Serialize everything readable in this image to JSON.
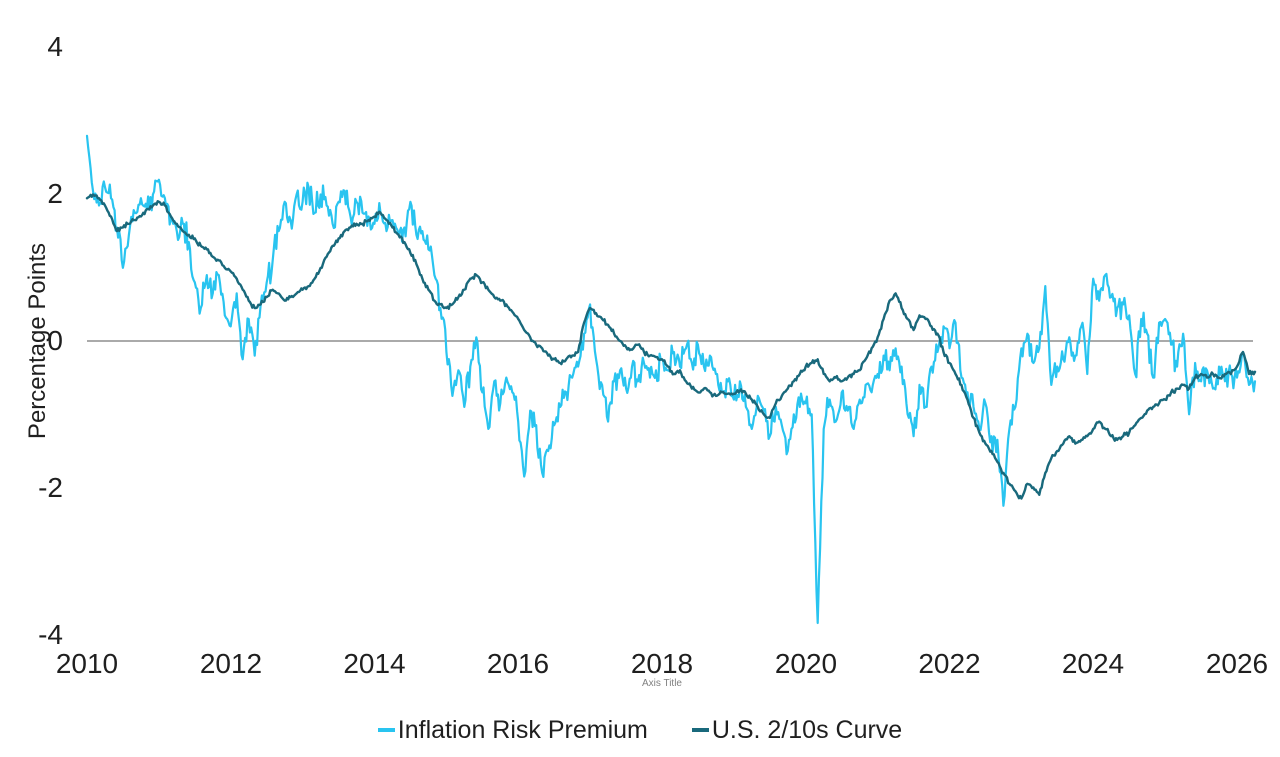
{
  "chart": {
    "y_axis_title": "Percentage Points",
    "x_axis_title": "Axis Title",
    "y_ticks": [
      "4",
      "2",
      "0",
      "-2",
      "-4"
    ],
    "x_ticks": [
      "2010",
      "2012",
      "2014",
      "2016",
      "2018",
      "2020",
      "2022",
      "2024",
      "2026"
    ],
    "background_color": "#FFFFFF",
    "zero_line_color": "#8E8E8E",
    "text_color": "#1F1F1F",
    "axis_title_color": "#808080"
  },
  "chart_data": {
    "type": "line",
    "title": "",
    "xlabel": "Axis Title",
    "ylabel": "Percentage Points",
    "ylim": [
      -4,
      4
    ],
    "x_range": [
      2010,
      2026.25
    ],
    "x_tick_values": [
      2010,
      2012,
      2014,
      2016,
      2018,
      2020,
      2022,
      2024,
      2026
    ],
    "y_tick_values": [
      4,
      2,
      0,
      -2,
      -4
    ],
    "grid": "zero-line-only",
    "legend_position": "bottom-center",
    "series": [
      {
        "name": "Inflation Risk Premium",
        "color": "#29C4F0",
        "x_start": 2010,
        "x_step": 0.083333,
        "jitter": 0.21,
        "values": [
          2.8,
          2.05,
          1.85,
          2.1,
          1.95,
          1.55,
          1.0,
          1.45,
          1.75,
          1.95,
          1.8,
          2.0,
          2.2,
          1.95,
          1.7,
          1.5,
          1.6,
          1.35,
          0.8,
          0.45,
          0.9,
          0.65,
          0.9,
          0.35,
          0.2,
          0.65,
          -0.25,
          0.3,
          -0.2,
          0.5,
          0.8,
          1.1,
          1.5,
          1.9,
          1.65,
          2.0,
          1.9,
          2.1,
          1.75,
          2.0,
          1.85,
          1.6,
          1.9,
          2.05,
          1.7,
          1.9,
          1.75,
          1.7,
          1.6,
          1.75,
          1.5,
          1.65,
          1.45,
          1.55,
          1.9,
          1.45,
          1.5,
          1.25,
          0.9,
          0.45,
          -0.15,
          -0.75,
          -0.4,
          -0.9,
          -0.35,
          0.05,
          -0.7,
          -1.2,
          -0.55,
          -0.85,
          -0.5,
          -0.7,
          -1.1,
          -1.85,
          -0.95,
          -1.15,
          -1.8,
          -1.5,
          -1.15,
          -0.9,
          -0.7,
          -0.5,
          -0.35,
          0.1,
          0.5,
          -0.25,
          -0.6,
          -1.1,
          -0.55,
          -0.4,
          -0.65,
          -0.35,
          -0.55,
          -0.3,
          -0.5,
          -0.4,
          -0.25,
          -0.4,
          -0.15,
          -0.35,
          -0.1,
          -0.3,
          -0.05,
          -0.35,
          -0.2,
          -0.45,
          -0.7,
          -0.55,
          -0.8,
          -0.55,
          -0.9,
          -1.2,
          -0.75,
          -0.95,
          -1.3,
          -0.9,
          -1.15,
          -1.5,
          -1.0,
          -0.9,
          -0.85,
          -1.0,
          -3.85,
          -1.2,
          -0.8,
          -1.1,
          -0.7,
          -0.95,
          -1.2,
          -0.8,
          -0.6,
          -0.7,
          -0.45,
          -0.2,
          -0.4,
          -0.1,
          -0.35,
          -1.0,
          -1.3,
          -0.6,
          -0.9,
          -0.35,
          -0.15,
          0.2,
          -0.1,
          0.25,
          -0.5,
          -0.7,
          -0.9,
          -1.2,
          -0.85,
          -1.3,
          -1.35,
          -2.25,
          -1.2,
          -0.9,
          -0.1,
          0.1,
          -0.3,
          -0.1,
          0.75,
          -0.6,
          -0.35,
          -0.25,
          0.05,
          -0.2,
          0.2,
          -0.45,
          0.85,
          0.55,
          0.9,
          0.6,
          0.45,
          0.5,
          0.35,
          -0.45,
          0.3,
          0.1,
          -0.5,
          0.25,
          0.3,
          -0.05,
          -0.35,
          0.1,
          -1.0,
          -0.3,
          -0.55,
          -0.4,
          -0.65,
          -0.35,
          -0.55,
          -0.45,
          -0.5,
          -0.15,
          -0.6,
          -0.55
        ]
      },
      {
        "name": "U.S. 2/10s Curve",
        "color": "#19697C",
        "x_start": 2010,
        "x_step": 0.083333,
        "jitter": 0.04,
        "values": [
          1.95,
          2.0,
          1.95,
          1.85,
          1.7,
          1.5,
          1.55,
          1.6,
          1.65,
          1.7,
          1.8,
          1.85,
          1.9,
          1.85,
          1.7,
          1.6,
          1.5,
          1.45,
          1.4,
          1.3,
          1.25,
          1.15,
          1.1,
          1.0,
          0.95,
          0.85,
          0.7,
          0.55,
          0.45,
          0.5,
          0.6,
          0.7,
          0.65,
          0.55,
          0.6,
          0.65,
          0.7,
          0.75,
          0.85,
          1.0,
          1.15,
          1.3,
          1.4,
          1.5,
          1.55,
          1.6,
          1.6,
          1.65,
          1.7,
          1.75,
          1.65,
          1.55,
          1.45,
          1.35,
          1.2,
          1.05,
          0.85,
          0.7,
          0.55,
          0.5,
          0.45,
          0.5,
          0.6,
          0.7,
          0.85,
          0.9,
          0.8,
          0.7,
          0.6,
          0.55,
          0.5,
          0.4,
          0.3,
          0.15,
          0.05,
          -0.05,
          -0.1,
          -0.2,
          -0.25,
          -0.3,
          -0.25,
          -0.2,
          -0.15,
          0.25,
          0.45,
          0.38,
          0.3,
          0.22,
          0.1,
          0.0,
          -0.08,
          -0.12,
          -0.05,
          -0.15,
          -0.2,
          -0.22,
          -0.25,
          -0.35,
          -0.45,
          -0.4,
          -0.55,
          -0.65,
          -0.7,
          -0.65,
          -0.7,
          -0.75,
          -0.7,
          -0.72,
          -0.72,
          -0.68,
          -0.72,
          -0.8,
          -0.9,
          -1.0,
          -1.05,
          -0.85,
          -0.75,
          -0.65,
          -0.55,
          -0.45,
          -0.35,
          -0.3,
          -0.25,
          -0.45,
          -0.55,
          -0.5,
          -0.55,
          -0.5,
          -0.45,
          -0.4,
          -0.25,
          -0.1,
          0.05,
          0.3,
          0.55,
          0.65,
          0.45,
          0.3,
          0.15,
          0.35,
          0.3,
          0.2,
          0.1,
          -0.15,
          -0.3,
          -0.45,
          -0.6,
          -0.8,
          -1.05,
          -1.25,
          -1.4,
          -1.5,
          -1.65,
          -1.8,
          -1.95,
          -2.05,
          -2.15,
          -1.95,
          -2.0,
          -2.1,
          -1.8,
          -1.6,
          -1.5,
          -1.4,
          -1.3,
          -1.4,
          -1.35,
          -1.3,
          -1.2,
          -1.1,
          -1.2,
          -1.3,
          -1.35,
          -1.3,
          -1.25,
          -1.15,
          -1.05,
          -0.95,
          -0.9,
          -0.85,
          -0.8,
          -0.7,
          -0.65,
          -0.6,
          -0.65,
          -0.5,
          -0.45,
          -0.5,
          -0.45,
          -0.5,
          -0.45,
          -0.45,
          -0.35,
          -0.15,
          -0.45,
          -0.42
        ]
      }
    ]
  }
}
